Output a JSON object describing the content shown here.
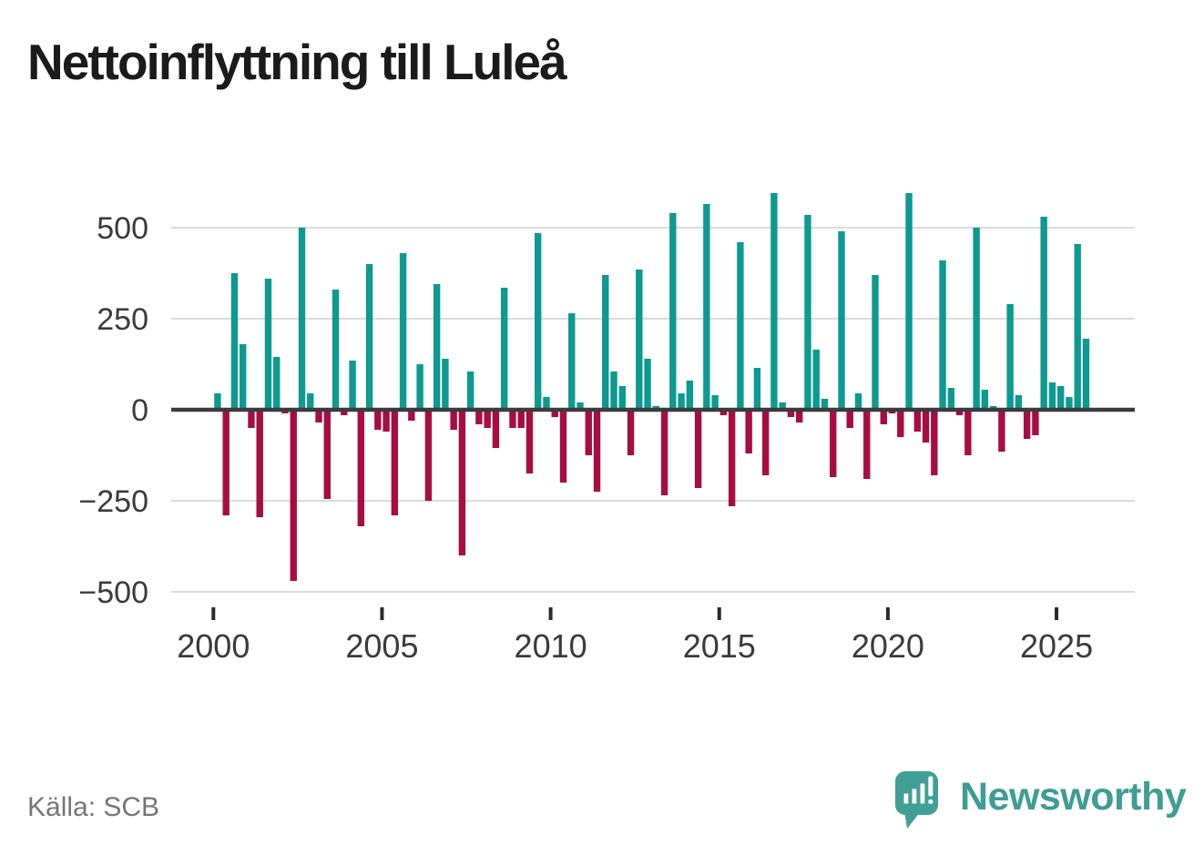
{
  "title": "Nettoinflyttning till Luleå",
  "source_note": "Källa: SCB",
  "logo": {
    "text": "Newsworthy"
  },
  "colors": {
    "positive": "#0D9A90",
    "negative": "#A80D42",
    "axis": "#3b3b3b",
    "grid": "#dcdcdc",
    "tick_label": "#3b3b3b",
    "title": "#1b1b1b",
    "source_text": "#767676",
    "logo": "#41A096",
    "background": "#ffffff"
  },
  "chart_data": {
    "type": "bar",
    "title": "Nettoinflyttning till Luleå",
    "frequency": "quarterly",
    "legend": "none",
    "grid": "horizontal",
    "ylim": [
      -500,
      620
    ],
    "y_axis": {
      "ticks": [
        {
          "label": "500",
          "value": 500
        },
        {
          "label": "250",
          "value": 250
        },
        {
          "label": "0",
          "value": 0
        },
        {
          "label": "−250",
          "value": -250
        },
        {
          "label": "−500",
          "value": -500
        }
      ]
    },
    "x_axis": {
      "ticks": [
        {
          "label": "2000",
          "year": 2000
        },
        {
          "label": "2005",
          "year": 2005
        },
        {
          "label": "2010",
          "year": 2010
        },
        {
          "label": "2015",
          "year": 2015
        },
        {
          "label": "2020",
          "year": 2020
        },
        {
          "label": "2025",
          "year": 2025
        }
      ]
    },
    "years": [
      {
        "year": 2000,
        "values": [
          45,
          -290,
          375,
          180
        ]
      },
      {
        "year": 2001,
        "values": [
          -50,
          -295,
          360,
          145
        ]
      },
      {
        "year": 2002,
        "values": [
          -10,
          -470,
          500,
          45
        ]
      },
      {
        "year": 2003,
        "values": [
          -35,
          -245,
          330,
          -15
        ]
      },
      {
        "year": 2004,
        "values": [
          135,
          -320,
          400,
          -55
        ]
      },
      {
        "year": 2005,
        "values": [
          -60,
          -290,
          430,
          -30
        ]
      },
      {
        "year": 2006,
        "values": [
          125,
          -250,
          345,
          140
        ]
      },
      {
        "year": 2007,
        "values": [
          -55,
          -400,
          105,
          -40
        ]
      },
      {
        "year": 2008,
        "values": [
          -50,
          -105,
          335,
          -50
        ]
      },
      {
        "year": 2009,
        "values": [
          -50,
          -175,
          485,
          35
        ]
      },
      {
        "year": 2010,
        "values": [
          -20,
          -200,
          265,
          20
        ]
      },
      {
        "year": 2011,
        "values": [
          -125,
          -225,
          370,
          105
        ]
      },
      {
        "year": 2012,
        "values": [
          65,
          -125,
          385,
          140
        ]
      },
      {
        "year": 2013,
        "values": [
          10,
          -235,
          540,
          45
        ]
      },
      {
        "year": 2014,
        "values": [
          80,
          -215,
          565,
          40
        ]
      },
      {
        "year": 2015,
        "values": [
          -15,
          -265,
          460,
          -120
        ]
      },
      {
        "year": 2016,
        "values": [
          115,
          -180,
          595,
          20
        ]
      },
      {
        "year": 2017,
        "values": [
          -20,
          -35,
          535,
          165
        ]
      },
      {
        "year": 2018,
        "values": [
          30,
          -185,
          490,
          -50
        ]
      },
      {
        "year": 2019,
        "values": [
          45,
          -190,
          370,
          -40
        ]
      },
      {
        "year": 2020,
        "values": [
          -10,
          -75,
          595,
          -60
        ]
      },
      {
        "year": 2021,
        "values": [
          -90,
          -180,
          410,
          60
        ]
      },
      {
        "year": 2022,
        "values": [
          -15,
          -125,
          500,
          55
        ]
      },
      {
        "year": 2023,
        "values": [
          10,
          -115,
          290,
          40
        ]
      },
      {
        "year": 2024,
        "values": [
          -80,
          -70,
          530,
          75
        ]
      },
      {
        "year": 2025,
        "values": [
          65,
          35,
          455,
          195
        ]
      }
    ]
  }
}
